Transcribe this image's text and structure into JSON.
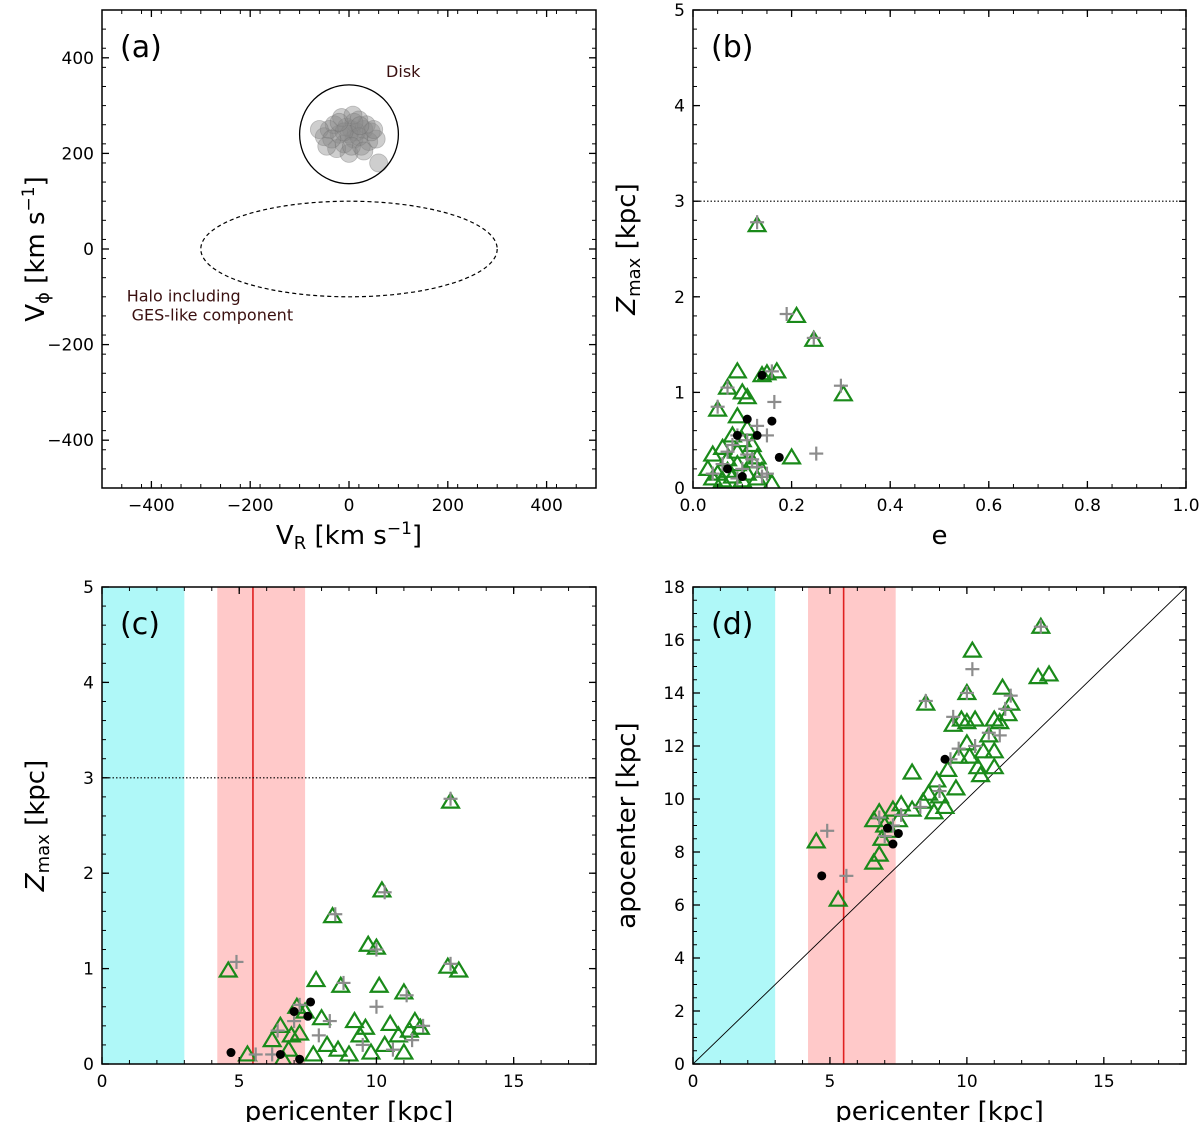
{
  "chart_data": [
    {
      "panel": "a",
      "type": "scatter",
      "panel_label": "(a)",
      "xlabel_main": "V",
      "xlabel_sub": "R",
      "xlabel_unit": " [km s",
      "xlabel_exp": "−1",
      "xlabel_end": "]",
      "ylabel_main": "V",
      "ylabel_sub": "ϕ",
      "ylabel_unit": " [km s",
      "ylabel_exp": "−1",
      "ylabel_end": "]",
      "xlim": [
        -500,
        500
      ],
      "ylim": [
        -500,
        500
      ],
      "xticks": [
        -400,
        -200,
        0,
        200,
        400
      ],
      "yticks": [
        -400,
        -200,
        0,
        200,
        400
      ],
      "disk_region": {
        "center": [
          0,
          240
        ],
        "radius": 100
      },
      "halo_region": {
        "center": [
          0,
          0
        ],
        "rx": 300,
        "ry": 100
      },
      "annotations": {
        "disk": "Disk",
        "halo_line1": "Halo including",
        "halo_line2": "GES-like component"
      },
      "points": [
        [
          -20,
          240
        ],
        [
          5,
          250
        ],
        [
          10,
          230
        ],
        [
          -10,
          220
        ],
        [
          30,
          250
        ],
        [
          -50,
          235
        ],
        [
          20,
          270
        ],
        [
          0,
          200
        ],
        [
          -30,
          260
        ],
        [
          40,
          225
        ],
        [
          15,
          245
        ],
        [
          -5,
          255
        ],
        [
          25,
          215
        ],
        [
          -40,
          250
        ],
        [
          55,
          230
        ],
        [
          -15,
          275
        ],
        [
          35,
          260
        ],
        [
          -25,
          210
        ],
        [
          45,
          245
        ],
        [
          10,
          265
        ],
        [
          -60,
          250
        ],
        [
          60,
          180
        ],
        [
          0,
          240
        ],
        [
          20,
          235
        ],
        [
          -10,
          245
        ],
        [
          -35,
          230
        ],
        [
          50,
          250
        ],
        [
          5,
          215
        ],
        [
          -20,
          265
        ],
        [
          30,
          205
        ],
        [
          8,
          280
        ],
        [
          -45,
          215
        ],
        [
          22,
          258
        ]
      ]
    },
    {
      "panel": "b",
      "type": "scatter",
      "panel_label": "(b)",
      "xlabel": "e",
      "ylabel_main": "Z",
      "ylabel_sub": "max",
      "ylabel_unit": " [kpc]",
      "xlim": [
        0,
        1
      ],
      "ylim": [
        0,
        5
      ],
      "xticks": [
        0.0,
        0.2,
        0.4,
        0.6,
        0.8,
        1.0
      ],
      "xtick_labels": [
        "0.0",
        "0.2",
        "0.4",
        "0.6",
        "0.8",
        "1.0"
      ],
      "yticks": [
        0,
        1,
        2,
        3,
        4,
        5
      ],
      "hline": 3,
      "triangles": [
        [
          0.13,
          2.75
        ],
        [
          0.21,
          1.8
        ],
        [
          0.245,
          1.55
        ],
        [
          0.305,
          0.98
        ],
        [
          0.2,
          0.32
        ],
        [
          0.15,
          1.2
        ],
        [
          0.17,
          1.22
        ],
        [
          0.09,
          1.22
        ],
        [
          0.07,
          1.05
        ],
        [
          0.1,
          1.0
        ],
        [
          0.05,
          0.82
        ],
        [
          0.09,
          0.75
        ],
        [
          0.14,
          1.18
        ],
        [
          0.11,
          0.95
        ],
        [
          0.04,
          0.35
        ],
        [
          0.06,
          0.42
        ],
        [
          0.08,
          0.55
        ],
        [
          0.1,
          0.5
        ],
        [
          0.12,
          0.45
        ],
        [
          0.03,
          0.2
        ],
        [
          0.05,
          0.15
        ],
        [
          0.07,
          0.3
        ],
        [
          0.09,
          0.25
        ],
        [
          0.11,
          0.15
        ],
        [
          0.13,
          0.1
        ],
        [
          0.06,
          0.08
        ],
        [
          0.08,
          0.12
        ],
        [
          0.1,
          0.08
        ],
        [
          0.12,
          0.28
        ],
        [
          0.14,
          0.18
        ],
        [
          0.04,
          0.1
        ],
        [
          0.16,
          0.05
        ],
        [
          0.11,
          0.62
        ],
        [
          0.09,
          0.38
        ],
        [
          0.07,
          0.18
        ],
        [
          0.13,
          0.32
        ]
      ],
      "plus_markers": [
        [
          0.13,
          2.78
        ],
        [
          0.19,
          1.82
        ],
        [
          0.245,
          1.57
        ],
        [
          0.3,
          1.07
        ],
        [
          0.25,
          0.36
        ],
        [
          0.16,
          1.22
        ],
        [
          0.15,
          0.55
        ],
        [
          0.13,
          0.65
        ],
        [
          0.165,
          0.9
        ],
        [
          0.07,
          1.05
        ],
        [
          0.05,
          0.85
        ],
        [
          0.09,
          0.55
        ],
        [
          0.11,
          0.35
        ],
        [
          0.08,
          0.45
        ],
        [
          0.06,
          0.25
        ],
        [
          0.1,
          0.2
        ],
        [
          0.12,
          0.3
        ],
        [
          0.04,
          0.15
        ],
        [
          0.14,
          0.12
        ],
        [
          0.09,
          0.1
        ],
        [
          0.07,
          0.38
        ],
        [
          0.11,
          0.5
        ],
        [
          0.13,
          0.22
        ],
        [
          0.15,
          0.15
        ]
      ],
      "dots": [
        [
          0.175,
          0.32
        ],
        [
          0.13,
          0.55
        ],
        [
          0.09,
          0.55
        ],
        [
          0.11,
          0.72
        ],
        [
          0.16,
          0.7
        ],
        [
          0.14,
          1.18
        ],
        [
          0.07,
          0.2
        ],
        [
          0.1,
          0.12
        ]
      ]
    },
    {
      "panel": "c",
      "type": "scatter",
      "panel_label": "(c)",
      "xlabel": "pericenter [kpc]",
      "ylabel_main": "Z",
      "ylabel_sub": "max",
      "ylabel_unit": " [kpc]",
      "xlim": [
        0,
        18
      ],
      "ylim": [
        0,
        5
      ],
      "xticks": [
        0,
        5,
        10,
        15
      ],
      "yticks": [
        0,
        1,
        2,
        3,
        4,
        5
      ],
      "hline": 3,
      "cyan_band": [
        0,
        3
      ],
      "pink_band": [
        4.2,
        7.4
      ],
      "vline": 5.5,
      "triangles": [
        [
          12.7,
          2.75
        ],
        [
          10.2,
          1.82
        ],
        [
          8.4,
          1.55
        ],
        [
          12.6,
          1.02
        ],
        [
          13.0,
          0.98
        ],
        [
          4.6,
          0.98
        ],
        [
          5.3,
          0.1
        ],
        [
          10.0,
          1.22
        ],
        [
          9.7,
          1.25
        ],
        [
          11.0,
          0.75
        ],
        [
          11.4,
          0.45
        ],
        [
          11.6,
          0.38
        ],
        [
          10.1,
          0.82
        ],
        [
          8.7,
          0.82
        ],
        [
          7.8,
          0.88
        ],
        [
          9.2,
          0.45
        ],
        [
          9.6,
          0.38
        ],
        [
          7.1,
          0.6
        ],
        [
          7.4,
          0.55
        ],
        [
          6.5,
          0.4
        ],
        [
          6.9,
          0.3
        ],
        [
          8.2,
          0.2
        ],
        [
          8.6,
          0.15
        ],
        [
          9.0,
          0.1
        ],
        [
          10.3,
          0.2
        ],
        [
          10.8,
          0.3
        ],
        [
          11.2,
          0.35
        ],
        [
          7.7,
          0.1
        ],
        [
          6.2,
          0.25
        ],
        [
          6.8,
          0.15
        ],
        [
          9.4,
          0.3
        ],
        [
          10.5,
          0.42
        ],
        [
          7.2,
          0.32
        ],
        [
          11.0,
          0.12
        ],
        [
          8.0,
          0.48
        ],
        [
          9.8,
          0.12
        ],
        [
          6.6,
          0.05
        ]
      ],
      "plus_markers": [
        [
          12.7,
          2.78
        ],
        [
          10.3,
          1.8
        ],
        [
          8.5,
          1.57
        ],
        [
          12.7,
          1.05
        ],
        [
          4.9,
          1.07
        ],
        [
          5.6,
          0.1
        ],
        [
          10.0,
          1.2
        ],
        [
          11.1,
          0.72
        ],
        [
          11.7,
          0.4
        ],
        [
          7.2,
          0.62
        ],
        [
          6.4,
          0.35
        ],
        [
          8.8,
          0.85
        ],
        [
          9.5,
          0.2
        ],
        [
          10.6,
          0.15
        ],
        [
          7.9,
          0.3
        ],
        [
          6.2,
          0.1
        ],
        [
          11.3,
          0.25
        ],
        [
          8.3,
          0.45
        ],
        [
          7.0,
          0.45
        ],
        [
          10.0,
          0.6
        ]
      ],
      "dots": [
        [
          4.7,
          0.12
        ],
        [
          7.5,
          0.5
        ],
        [
          7.0,
          0.55
        ],
        [
          7.6,
          0.65
        ],
        [
          6.5,
          0.1
        ],
        [
          7.2,
          0.05
        ]
      ]
    },
    {
      "panel": "d",
      "type": "scatter",
      "panel_label": "(d)",
      "xlabel": "pericenter [kpc]",
      "ylabel": "apocenter [kpc]",
      "xlim": [
        0,
        18
      ],
      "ylim": [
        0,
        18
      ],
      "xticks": [
        0,
        5,
        10,
        15
      ],
      "yticks": [
        0,
        2,
        4,
        6,
        8,
        10,
        12,
        14,
        16,
        18
      ],
      "diagonal": true,
      "cyan_band": [
        0,
        3
      ],
      "pink_band": [
        4.2,
        7.4
      ],
      "vline": 5.5,
      "triangles": [
        [
          4.5,
          8.4
        ],
        [
          5.3,
          6.2
        ],
        [
          6.6,
          7.6
        ],
        [
          6.8,
          7.9
        ],
        [
          7.0,
          9.0
        ],
        [
          6.8,
          9.5
        ],
        [
          7.2,
          8.8
        ],
        [
          7.5,
          9.2
        ],
        [
          7.6,
          9.8
        ],
        [
          8.0,
          9.6
        ],
        [
          8.4,
          9.9
        ],
        [
          8.6,
          10.2
        ],
        [
          9.0,
          10.1
        ],
        [
          9.2,
          9.7
        ],
        [
          8.8,
          9.5
        ],
        [
          8.5,
          13.6
        ],
        [
          8.0,
          11.0
        ],
        [
          9.5,
          12.8
        ],
        [
          9.8,
          13.0
        ],
        [
          10.0,
          12.9
        ],
        [
          10.2,
          15.6
        ],
        [
          10.3,
          13.0
        ],
        [
          10.0,
          12.1
        ],
        [
          10.1,
          11.6
        ],
        [
          10.4,
          11.2
        ],
        [
          10.6,
          11.8
        ],
        [
          10.8,
          12.4
        ],
        [
          11.0,
          11.8
        ],
        [
          11.2,
          12.9
        ],
        [
          11.3,
          14.2
        ],
        [
          11.5,
          13.2
        ],
        [
          11.6,
          13.6
        ],
        [
          11.0,
          13.0
        ],
        [
          12.7,
          16.5
        ],
        [
          12.6,
          14.6
        ],
        [
          13.0,
          14.7
        ],
        [
          10.0,
          14.0
        ],
        [
          9.7,
          11.6
        ],
        [
          9.3,
          11.1
        ],
        [
          10.5,
          10.9
        ],
        [
          8.9,
          10.7
        ],
        [
          7.3,
          9.6
        ],
        [
          6.6,
          9.2
        ],
        [
          6.9,
          8.5
        ],
        [
          9.6,
          10.4
        ],
        [
          11.0,
          11.2
        ]
      ],
      "plus_markers": [
        [
          4.9,
          8.8
        ],
        [
          5.6,
          7.1
        ],
        [
          6.8,
          9.3
        ],
        [
          7.3,
          9.0
        ],
        [
          8.5,
          13.7
        ],
        [
          9.5,
          13.1
        ],
        [
          10.2,
          14.9
        ],
        [
          10.0,
          14.0
        ],
        [
          10.8,
          12.5
        ],
        [
          11.6,
          13.9
        ],
        [
          12.7,
          16.5
        ],
        [
          9.4,
          11.5
        ],
        [
          8.3,
          9.7
        ],
        [
          9.0,
          10.3
        ],
        [
          10.3,
          12.0
        ],
        [
          11.2,
          12.4
        ],
        [
          7.6,
          9.4
        ],
        [
          9.7,
          11.9
        ],
        [
          11.4,
          13.4
        ],
        [
          7.0,
          8.6
        ]
      ],
      "dots": [
        [
          4.7,
          7.1
        ],
        [
          7.5,
          8.7
        ],
        [
          7.3,
          8.3
        ],
        [
          9.2,
          11.5
        ],
        [
          7.1,
          8.9
        ]
      ]
    }
  ]
}
